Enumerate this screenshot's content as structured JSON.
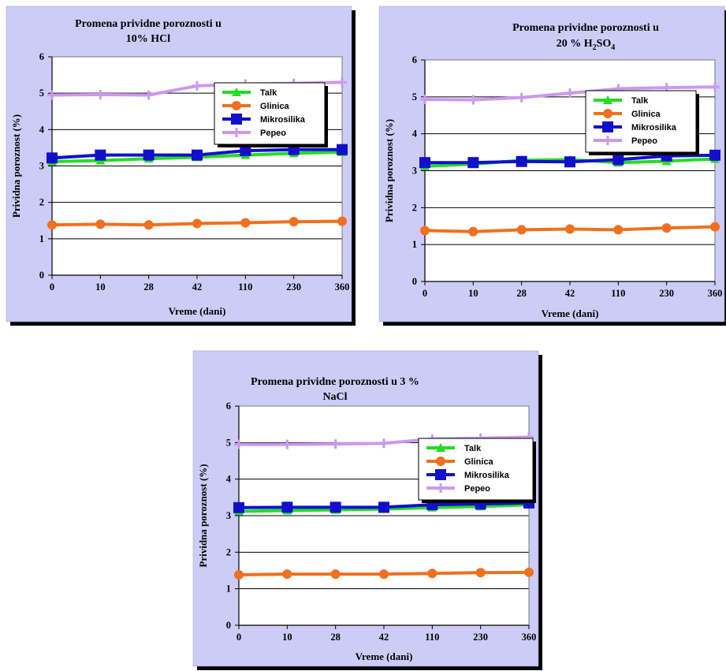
{
  "chart_data": [
    {
      "type": "line",
      "title": "Promena prividne poroznosti u 10% HCl",
      "title_lines": [
        "Promena prividne poroznosti u",
        "10% HCl"
      ],
      "xlabel": "Vreme (dani)",
      "ylabel": "Prividna poroznost (%)",
      "categories": [
        "0",
        "10",
        "28",
        "42",
        "110",
        "230",
        "360"
      ],
      "ylim": [
        0,
        6
      ],
      "yticks": [
        "0",
        "1",
        "2",
        "3",
        "4",
        "5",
        "6"
      ],
      "grid": true,
      "legend_position": "right",
      "series": [
        {
          "name": "Talk",
          "color": "#22dd22",
          "marker": "triangle",
          "values": [
            3.12,
            3.15,
            3.2,
            3.24,
            3.3,
            3.35,
            3.38
          ]
        },
        {
          "name": "Glinica",
          "color": "#f07020",
          "marker": "circle",
          "values": [
            1.38,
            1.4,
            1.38,
            1.42,
            1.44,
            1.47,
            1.48
          ]
        },
        {
          "name": "Mikrosilika",
          "color": "#1010cc",
          "marker": "square",
          "values": [
            3.22,
            3.3,
            3.3,
            3.3,
            3.42,
            3.45,
            3.45
          ]
        },
        {
          "name": "Pepeo",
          "color": "#cc99ee",
          "marker": "cross",
          "values": [
            4.95,
            4.96,
            4.95,
            5.2,
            5.25,
            5.27,
            5.3
          ]
        }
      ]
    },
    {
      "type": "line",
      "title": "Promena prividne poroznosti u 20 % H2SO4",
      "title_lines": [
        "Promena prividne poroznosti u"
      ],
      "title_formula": {
        "lead": "20 % H",
        "sub1": "2",
        "mid": "SO",
        "sub2": "4"
      },
      "xlabel": "Vreme (dani)",
      "ylabel": "Prividna poroznost (%)",
      "categories": [
        "0",
        "10",
        "28",
        "42",
        "110",
        "230",
        "360"
      ],
      "ylim": [
        0,
        6
      ],
      "yticks": [
        "0",
        "1",
        "2",
        "3",
        "4",
        "5",
        "6"
      ],
      "grid": true,
      "legend_position": "right",
      "series": [
        {
          "name": "Talk",
          "color": "#22dd22",
          "marker": "triangle",
          "values": [
            3.12,
            3.18,
            3.28,
            3.3,
            3.22,
            3.26,
            3.32
          ]
        },
        {
          "name": "Glinica",
          "color": "#f07020",
          "marker": "circle",
          "values": [
            1.38,
            1.35,
            1.4,
            1.42,
            1.4,
            1.45,
            1.48
          ]
        },
        {
          "name": "Mikrosilika",
          "color": "#1010cc",
          "marker": "square",
          "values": [
            3.22,
            3.22,
            3.25,
            3.24,
            3.3,
            3.4,
            3.42
          ]
        },
        {
          "name": "Pepeo",
          "color": "#cc99ee",
          "marker": "cross",
          "values": [
            4.93,
            4.92,
            4.98,
            5.1,
            5.22,
            5.25,
            5.27
          ]
        }
      ]
    },
    {
      "type": "line",
      "title": "Promena prividne poroznosti u 3 % NaCl",
      "title_lines": [
        "Promena prividne poroznosti u 3 %",
        "NaCl"
      ],
      "xlabel": "Vreme (dani)",
      "ylabel": "Prividna poroznost (%)",
      "categories": [
        "0",
        "10",
        "28",
        "42",
        "110",
        "230",
        "360"
      ],
      "ylim": [
        0,
        6
      ],
      "yticks": [
        "0",
        "1",
        "2",
        "3",
        "4",
        "5",
        "6"
      ],
      "grid": true,
      "legend_position": "right",
      "series": [
        {
          "name": "Talk",
          "color": "#22dd22",
          "marker": "triangle",
          "values": [
            3.12,
            3.14,
            3.16,
            3.18,
            3.22,
            3.25,
            3.3
          ]
        },
        {
          "name": "Glinica",
          "color": "#f07020",
          "marker": "circle",
          "values": [
            1.38,
            1.4,
            1.4,
            1.4,
            1.42,
            1.44,
            1.45
          ]
        },
        {
          "name": "Mikrosilika",
          "color": "#1010cc",
          "marker": "square",
          "values": [
            3.22,
            3.23,
            3.23,
            3.23,
            3.3,
            3.32,
            3.35
          ]
        },
        {
          "name": "Pepeo",
          "color": "#cc99ee",
          "marker": "cross",
          "values": [
            4.95,
            4.95,
            4.96,
            4.98,
            5.1,
            5.12,
            5.15
          ]
        }
      ]
    }
  ],
  "style": {
    "chart_background": "#ccccf7",
    "plot_background": "#ffffff",
    "frame_shadow": "#000000"
  }
}
